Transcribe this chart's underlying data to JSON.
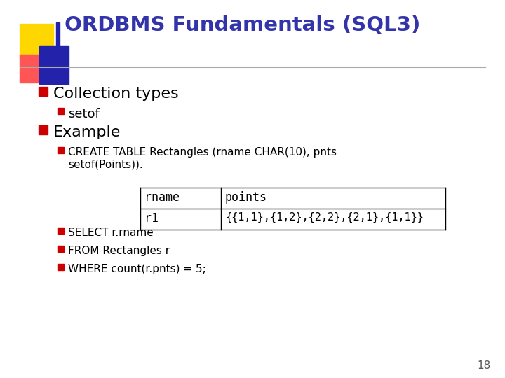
{
  "title": "ORDBMS Fundamentals (SQL3)",
  "title_color": "#3333AA",
  "bg_color": "#FFFFFF",
  "slide_number": "18",
  "bullet1": "Collection types",
  "sub_bullet1": "setof",
  "bullet2": "Example",
  "sub_bullet2_line1": "CREATE TABLE Rectangles (rname CHAR(10), pnts",
  "sub_bullet2_line2": "setof(Points)).",
  "table_headers": [
    "rname",
    "points"
  ],
  "table_row": [
    "r1",
    "{{1,1},{1,2},{2,2},{2,1},{1,1}}"
  ],
  "sub_bullets_sql": [
    "SELECT r.rname",
    "FROM Rectangles r",
    "WHERE count(r.pnts) = 5;"
  ],
  "bullet_color": "#CC0000",
  "text_color": "#000000",
  "decor_yellow": "#FFD700",
  "decor_red": "#FF5555",
  "decor_blue": "#2222AA"
}
